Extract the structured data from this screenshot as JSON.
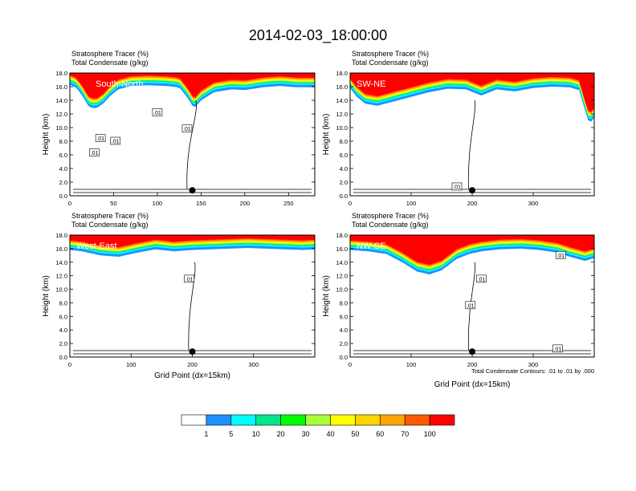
{
  "title": "2014-02-03_18:00:00",
  "chart_data": [
    {
      "type": "heatmap",
      "label": "South-North",
      "title_lines": [
        "Stratosphere Tracer   (%)",
        "Total Condensate   (g/kg)"
      ],
      "ylabel": "Height (km)",
      "xlabel": "",
      "xlim": [
        0,
        280
      ],
      "ylim": [
        0,
        18
      ],
      "xticks": [
        0,
        50,
        100,
        150,
        200,
        250
      ],
      "yticks": [
        "0.0",
        "2.0",
        "4.0",
        "6.0",
        "8.0",
        "10.0",
        "12.0",
        "14.0",
        "16.0",
        "18.0"
      ],
      "marker_x": 140,
      "tracer_profile": [
        [
          0,
          16.3
        ],
        [
          8,
          15.8
        ],
        [
          15,
          14.5
        ],
        [
          22,
          13.0
        ],
        [
          30,
          12.8
        ],
        [
          38,
          13.5
        ],
        [
          45,
          14.5
        ],
        [
          55,
          15.6
        ],
        [
          70,
          16.1
        ],
        [
          90,
          16.2
        ],
        [
          110,
          16.1
        ],
        [
          125,
          15.9
        ],
        [
          135,
          14.3
        ],
        [
          142,
          12.8
        ],
        [
          150,
          14.0
        ],
        [
          165,
          15.2
        ],
        [
          185,
          15.6
        ],
        [
          200,
          15.5
        ],
        [
          220,
          15.9
        ],
        [
          240,
          16.1
        ],
        [
          260,
          15.9
        ],
        [
          280,
          15.9
        ]
      ],
      "contour_labels": [
        {
          "x": 100,
          "y": 12.2,
          "text": ".01"
        },
        {
          "x": 134,
          "y": 9.8,
          "text": ".01"
        },
        {
          "x": 35,
          "y": 8.4,
          "text": ".01"
        },
        {
          "x": 52,
          "y": 8.0,
          "text": ".01"
        },
        {
          "x": 28,
          "y": 6.3,
          "text": ".01"
        }
      ]
    },
    {
      "type": "heatmap",
      "label": "SW-NE",
      "title_lines": [
        "Stratosphere Tracer   (%)",
        "Total Condensate   (g/kg)"
      ],
      "ylabel": "Height (km)",
      "xlabel": "",
      "xlim": [
        0,
        400
      ],
      "ylim": [
        0,
        18
      ],
      "xticks": [
        0,
        100,
        200,
        300
      ],
      "yticks": [
        "0.0",
        "2.0",
        "4.0",
        "6.0",
        "8.0",
        "10.0",
        "12.0",
        "14.0",
        "16.0",
        "18.0"
      ],
      "marker_x": 200,
      "tracer_profile": [
        [
          0,
          15.8
        ],
        [
          10,
          14.6
        ],
        [
          25,
          13.5
        ],
        [
          45,
          13.2
        ],
        [
          70,
          13.8
        ],
        [
          100,
          14.5
        ],
        [
          130,
          15.2
        ],
        [
          160,
          15.7
        ],
        [
          190,
          15.6
        ],
        [
          215,
          14.7
        ],
        [
          240,
          15.6
        ],
        [
          270,
          15.3
        ],
        [
          300,
          15.8
        ],
        [
          330,
          16.0
        ],
        [
          360,
          15.9
        ],
        [
          375,
          15.5
        ],
        [
          385,
          12.5
        ],
        [
          392,
          10.5
        ],
        [
          400,
          11.5
        ]
      ],
      "contour_labels": [
        {
          "x": 175,
          "y": 1.3,
          "text": ".01"
        }
      ]
    },
    {
      "type": "heatmap",
      "label": "West-East",
      "title_lines": [
        "Stratosphere Tracer   (%)",
        "Total Condensate   (g/kg)"
      ],
      "ylabel": "Height (km)",
      "xlabel": "Grid Point (dx=15km)",
      "xlim": [
        0,
        400
      ],
      "ylim": [
        0,
        18
      ],
      "xticks": [
        0,
        100,
        200,
        300
      ],
      "yticks": [
        "0.0",
        "2.0",
        "4.0",
        "6.0",
        "8.0",
        "10.0",
        "12.0",
        "14.0",
        "16.0",
        "18.0"
      ],
      "marker_x": 200,
      "tracer_profile": [
        [
          0,
          15.8
        ],
        [
          20,
          15.6
        ],
        [
          50,
          15.0
        ],
        [
          80,
          14.8
        ],
        [
          110,
          15.4
        ],
        [
          140,
          15.9
        ],
        [
          170,
          15.6
        ],
        [
          200,
          15.8
        ],
        [
          230,
          15.9
        ],
        [
          260,
          16.0
        ],
        [
          290,
          16.1
        ],
        [
          320,
          16.0
        ],
        [
          350,
          15.9
        ],
        [
          380,
          15.8
        ],
        [
          400,
          15.9
        ]
      ],
      "contour_labels": [
        {
          "x": 195,
          "y": 11.5,
          "text": ".01"
        }
      ]
    },
    {
      "type": "heatmap",
      "label": "NW-SE",
      "title_lines": [
        "Stratosphere Tracer   (%)",
        "Total Condensate   (g/kg)"
      ],
      "ylabel": "Height (km)",
      "xlabel": "Grid Point (dx=15km)",
      "xlim": [
        0,
        400
      ],
      "ylim": [
        0,
        18
      ],
      "xticks": [
        0,
        100,
        200,
        300
      ],
      "yticks": [
        "0.0",
        "2.0",
        "4.0",
        "6.0",
        "8.0",
        "10.0",
        "12.0",
        "14.0",
        "16.0",
        "18.0"
      ],
      "marker_x": 200,
      "tracer_profile": [
        [
          0,
          15.8
        ],
        [
          30,
          15.6
        ],
        [
          60,
          15.2
        ],
        [
          85,
          14.0
        ],
        [
          110,
          12.6
        ],
        [
          130,
          12.2
        ],
        [
          150,
          12.8
        ],
        [
          175,
          14.5
        ],
        [
          195,
          15.2
        ],
        [
          215,
          15.6
        ],
        [
          245,
          15.9
        ],
        [
          280,
          16.0
        ],
        [
          310,
          15.8
        ],
        [
          340,
          15.4
        ],
        [
          360,
          14.8
        ],
        [
          385,
          14.2
        ],
        [
          400,
          14.6
        ]
      ],
      "contour_labels": [
        {
          "x": 215,
          "y": 11.5,
          "text": ".01"
        },
        {
          "x": 197,
          "y": 7.6,
          "text": ".01"
        },
        {
          "x": 345,
          "y": 15.0,
          "text": ".01"
        },
        {
          "x": 340,
          "y": 1.2,
          "text": ".01"
        }
      ],
      "footnote": "Total Condensate Contours: .01 to .01 by .000"
    }
  ],
  "colorbar": {
    "labels": [
      "1",
      "5",
      "10",
      "20",
      "30",
      "40",
      "50",
      "60",
      "70",
      "100"
    ],
    "colors": [
      "#ffffff",
      "#1e90ff",
      "#00ffff",
      "#00e68c",
      "#00ff00",
      "#aaff3c",
      "#ffff00",
      "#ffd400",
      "#ffa500",
      "#ff5a00",
      "#ff0000"
    ]
  }
}
